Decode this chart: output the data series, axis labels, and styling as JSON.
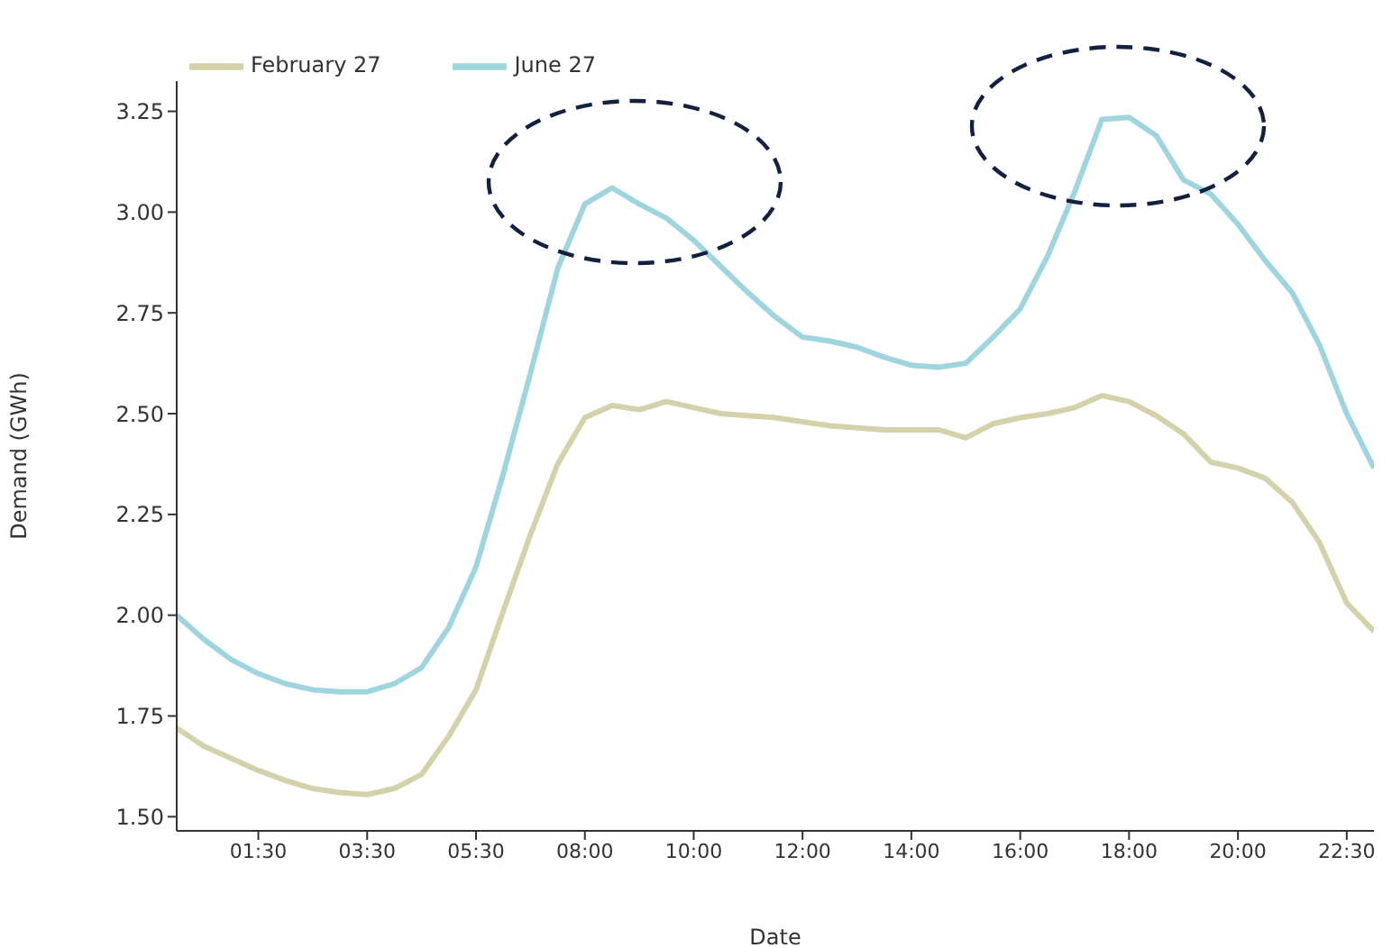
{
  "chart_data": {
    "type": "line",
    "xlabel": "Date",
    "ylabel": "Demand (GWh)",
    "ylim": [
      1.465,
      3.325
    ],
    "yticks": [
      {
        "value": 1.5,
        "label": "1.50"
      },
      {
        "value": 1.75,
        "label": "1.75"
      },
      {
        "value": 2,
        "label": "2.00"
      },
      {
        "value": 2.25,
        "label": "2.25"
      },
      {
        "value": 2.5,
        "label": "2.50"
      },
      {
        "value": 2.75,
        "label": "2.75"
      },
      {
        "value": 3,
        "label": "3.00"
      },
      {
        "value": 3.25,
        "label": "3.25"
      }
    ],
    "categories": [
      null,
      null,
      null,
      "01:30",
      null,
      null,
      null,
      "03:30",
      null,
      null,
      null,
      "05:30",
      null,
      null,
      null,
      "08:00",
      null,
      null,
      null,
      "10:00",
      null,
      null,
      null,
      "12:00",
      null,
      null,
      null,
      "14:00",
      null,
      null,
      null,
      "16:00",
      null,
      null,
      null,
      "18:00",
      null,
      null,
      null,
      "20:00",
      null,
      null,
      null,
      "22:30",
      null
    ],
    "series": [
      {
        "name": "February 27",
        "color": "#d3d2ab",
        "values": [
          1.72,
          1.675,
          1.645,
          1.615,
          1.59,
          1.57,
          1.56,
          1.555,
          1.57,
          1.605,
          1.7,
          1.815,
          2.01,
          2.2,
          2.375,
          2.49,
          2.52,
          2.51,
          2.53,
          2.515,
          2.5,
          2.495,
          2.49,
          2.48,
          2.47,
          2.465,
          2.46,
          2.46,
          2.46,
          2.44,
          2.475,
          2.49,
          2.5,
          2.515,
          2.545,
          2.53,
          2.495,
          2.45,
          2.38,
          2.365,
          2.34,
          2.28,
          2.18,
          2.03,
          1.96
        ]
      },
      {
        "name": "June 27",
        "color": "#9fd5df",
        "values": [
          2.0,
          1.94,
          1.89,
          1.855,
          1.83,
          1.815,
          1.81,
          1.81,
          1.83,
          1.87,
          1.97,
          2.12,
          2.35,
          2.6,
          2.86,
          3.02,
          3.06,
          3.02,
          2.985,
          2.93,
          2.865,
          2.8,
          2.74,
          2.69,
          2.68,
          2.665,
          2.64,
          2.62,
          2.615,
          2.625,
          2.69,
          2.76,
          2.89,
          3.05,
          3.23,
          3.235,
          3.19,
          3.08,
          3.045,
          2.97,
          2.88,
          2.8,
          2.67,
          2.5,
          2.365
        ]
      }
    ],
    "legend": "top left",
    "marker": "none",
    "line_style": "solid"
  }
}
